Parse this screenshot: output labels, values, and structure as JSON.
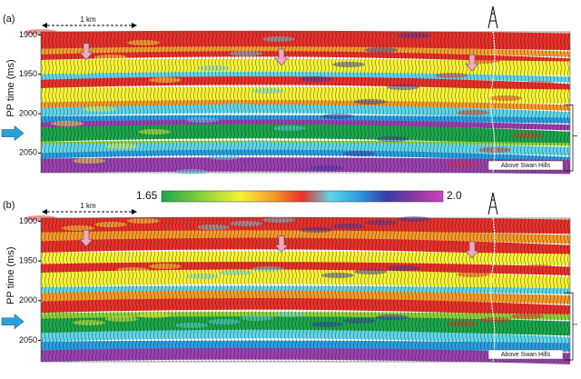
{
  "colorbar": {
    "min_label": "1.65",
    "max_label": "2.0"
  },
  "panels": [
    {
      "label": "(a)",
      "ylabel": "PP time (ms)",
      "ylim": [
        1896,
        2075
      ],
      "yticks": [
        1900,
        1950,
        2000,
        2050
      ],
      "scale_bar": "1 km",
      "annotation": "Above Swan Hills"
    },
    {
      "label": "(b)",
      "ylabel": "PP time (ms)",
      "ylim": [
        1896,
        2077
      ],
      "yticks": [
        1900,
        1950,
        2000,
        2050
      ],
      "scale_bar": "1 km",
      "annotation": "Above Swan Hills"
    }
  ]
}
